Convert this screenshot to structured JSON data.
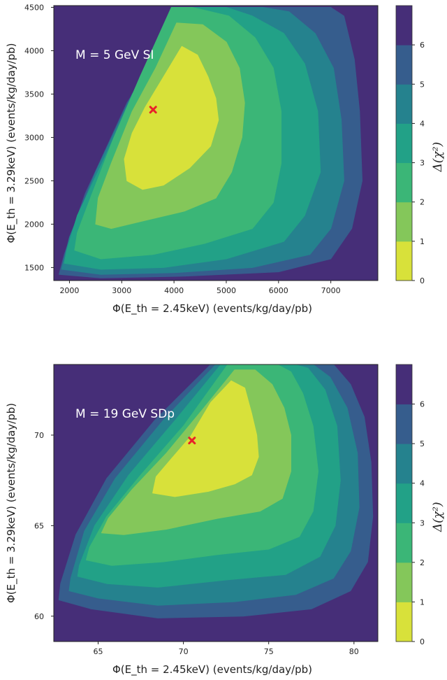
{
  "colors": {
    "levels": [
      "#d8e13a",
      "#84c75a",
      "#3bb677",
      "#22a187",
      "#25828e",
      "#365d8d",
      "#462e78"
    ],
    "marker": "#e8222a"
  },
  "colorbar": {
    "label": "Δ(χ²)",
    "ticks": [
      "0",
      "1",
      "2",
      "3",
      "4",
      "5",
      "6"
    ],
    "range": [
      0,
      7
    ]
  },
  "chart_data": [
    {
      "type": "contour",
      "annotation": "M = 5 GeV SI",
      "xlabel": "Φ(E_th = 2.45keV) (events/kg/day/pb)",
      "ylabel": "Φ(E_th = 3.29keV) (events/kg/day/pb)",
      "xlim": [
        1700,
        7900
      ],
      "ylim": [
        1350,
        4520
      ],
      "xticks": [
        2000,
        3000,
        4000,
        5000,
        6000,
        7000
      ],
      "yticks": [
        1500,
        2000,
        2500,
        3000,
        3500,
        4000,
        4500
      ],
      "best_fit": [
        3600,
        3320
      ],
      "contour_levels": [
        1,
        2,
        3,
        4,
        5,
        6
      ],
      "contours": [
        {
          "level": "Δχ² < 1",
          "points": [
            [
              3100,
              2500
            ],
            [
              3400,
              2400
            ],
            [
              3800,
              2450
            ],
            [
              4300,
              2650
            ],
            [
              4700,
              2900
            ],
            [
              4850,
              3200
            ],
            [
              4800,
              3450
            ],
            [
              4650,
              3700
            ],
            [
              4450,
              3950
            ],
            [
              4150,
              4050
            ],
            [
              3800,
              3700
            ],
            [
              3450,
              3350
            ],
            [
              3200,
              3050
            ],
            [
              3050,
              2750
            ]
          ]
        },
        {
          "level": "Δχ² < 2",
          "points": [
            [
              2500,
              2000
            ],
            [
              2800,
              1950
            ],
            [
              3500,
              2050
            ],
            [
              4200,
              2150
            ],
            [
              4800,
              2300
            ],
            [
              5100,
              2600
            ],
            [
              5300,
              3000
            ],
            [
              5350,
              3400
            ],
            [
              5250,
              3800
            ],
            [
              5000,
              4100
            ],
            [
              4550,
              4300
            ],
            [
              4050,
              4320
            ],
            [
              3650,
              3800
            ],
            [
              3200,
              3300
            ],
            [
              2800,
              2700
            ],
            [
              2550,
              2300
            ]
          ]
        },
        {
          "level": "Δχ² < 3",
          "points": [
            [
              2100,
              1700
            ],
            [
              2600,
              1600
            ],
            [
              3600,
              1650
            ],
            [
              4600,
              1780
            ],
            [
              5500,
              1950
            ],
            [
              5900,
              2250
            ],
            [
              6050,
              2700
            ],
            [
              6050,
              3300
            ],
            [
              5900,
              3800
            ],
            [
              5550,
              4150
            ],
            [
              5050,
              4400
            ],
            [
              4350,
              4500
            ],
            [
              3950,
              4500
            ],
            [
              3350,
              3700
            ],
            [
              2850,
              3000
            ],
            [
              2400,
              2300
            ],
            [
              2150,
              1900
            ]
          ]
        },
        {
          "level": "Δχ² < 4",
          "points": [
            [
              1900,
              1550
            ],
            [
              2600,
              1480
            ],
            [
              3800,
              1500
            ],
            [
              5000,
              1600
            ],
            [
              6100,
              1800
            ],
            [
              6500,
              2100
            ],
            [
              6800,
              2600
            ],
            [
              6750,
              3300
            ],
            [
              6500,
              3850
            ],
            [
              6100,
              4200
            ],
            [
              5500,
              4400
            ],
            [
              5000,
              4500
            ],
            [
              4150,
              4500
            ],
            [
              3300,
              3600
            ],
            [
              2700,
              2800
            ],
            [
              2150,
              2100
            ],
            [
              1950,
              1700
            ]
          ]
        },
        {
          "level": "Δχ² < 5",
          "points": [
            [
              1850,
              1480
            ],
            [
              2600,
              1420
            ],
            [
              4000,
              1440
            ],
            [
              5500,
              1500
            ],
            [
              6600,
              1650
            ],
            [
              7000,
              1950
            ],
            [
              7250,
              2500
            ],
            [
              7200,
              3200
            ],
            [
              7050,
              3800
            ],
            [
              6700,
              4200
            ],
            [
              6200,
              4450
            ],
            [
              5700,
              4500
            ],
            [
              4250,
              4500
            ],
            [
              3200,
              3500
            ],
            [
              2500,
              2600
            ],
            [
              2000,
              1850
            ]
          ]
        },
        {
          "level": "Δχ² < 6",
          "points": [
            [
              1800,
              1420
            ],
            [
              2600,
              1380
            ],
            [
              4200,
              1400
            ],
            [
              6000,
              1450
            ],
            [
              7000,
              1600
            ],
            [
              7400,
              1950
            ],
            [
              7600,
              2500
            ],
            [
              7550,
              3300
            ],
            [
              7450,
              3900
            ],
            [
              7250,
              4400
            ],
            [
              7000,
              4500
            ],
            [
              4300,
              4500
            ],
            [
              3100,
              3400
            ],
            [
              2300,
              2350
            ],
            [
              1900,
              1650
            ]
          ]
        }
      ]
    },
    {
      "type": "contour",
      "annotation": "M = 19 GeV SDp",
      "xlabel": "Φ(E_th = 2.45keV) (events/kg/day/pb)",
      "ylabel": "Φ(E_th = 3.29keV) (events/kg/day/pb)",
      "xlim": [
        62.4,
        81.4
      ],
      "ylim": [
        58.6,
        73.9
      ],
      "xticks": [
        65,
        70,
        75,
        80
      ],
      "yticks": [
        60,
        65,
        70
      ],
      "best_fit": [
        70.5,
        69.7
      ],
      "contour_levels": [
        1,
        2,
        3,
        4,
        5,
        6
      ],
      "contours": [
        {
          "level": "Δχ² < 1",
          "points": [
            [
              68.2,
              66.8
            ],
            [
              69.5,
              66.6
            ],
            [
              71.5,
              66.9
            ],
            [
              73.0,
              67.3
            ],
            [
              74.0,
              67.8
            ],
            [
              74.4,
              68.8
            ],
            [
              74.3,
              70.0
            ],
            [
              74.0,
              71.2
            ],
            [
              73.6,
              72.6
            ],
            [
              72.8,
              73.0
            ],
            [
              71.6,
              71.8
            ],
            [
              70.4,
              69.9
            ],
            [
              69.3,
              68.7
            ],
            [
              68.4,
              67.7
            ]
          ]
        },
        {
          "level": "Δχ² < 2",
          "points": [
            [
              65.2,
              64.6
            ],
            [
              66.5,
              64.5
            ],
            [
              69.0,
              64.8
            ],
            [
              72.0,
              65.4
            ],
            [
              74.5,
              65.8
            ],
            [
              75.8,
              66.5
            ],
            [
              76.3,
              68.0
            ],
            [
              76.3,
              70.0
            ],
            [
              75.9,
              71.5
            ],
            [
              75.2,
              72.8
            ],
            [
              74.2,
              73.6
            ],
            [
              73.0,
              73.6
            ],
            [
              71.2,
              71.5
            ],
            [
              69.0,
              69.0
            ],
            [
              67.0,
              67.0
            ],
            [
              65.6,
              65.4
            ]
          ]
        },
        {
          "level": "Δχ² < 3",
          "points": [
            [
              64.3,
              63.1
            ],
            [
              65.8,
              62.8
            ],
            [
              68.8,
              63.0
            ],
            [
              72.0,
              63.4
            ],
            [
              75.0,
              63.7
            ],
            [
              76.8,
              64.4
            ],
            [
              77.6,
              65.8
            ],
            [
              77.9,
              68.0
            ],
            [
              77.6,
              70.5
            ],
            [
              77.0,
              72.3
            ],
            [
              76.3,
              73.5
            ],
            [
              75.5,
              73.9
            ],
            [
              72.6,
              73.9
            ],
            [
              70.0,
              70.5
            ],
            [
              67.5,
              67.8
            ],
            [
              65.5,
              65.5
            ],
            [
              64.5,
              63.8
            ]
          ]
        },
        {
          "level": "Δχ² < 4",
          "points": [
            [
              63.8,
              62.2
            ],
            [
              65.5,
              61.8
            ],
            [
              68.5,
              61.6
            ],
            [
              72.5,
              62.0
            ],
            [
              76.0,
              62.3
            ],
            [
              78.0,
              63.3
            ],
            [
              78.9,
              65.0
            ],
            [
              79.2,
              67.5
            ],
            [
              79.0,
              70.5
            ],
            [
              78.3,
              72.5
            ],
            [
              77.3,
              73.7
            ],
            [
              76.5,
              73.9
            ],
            [
              72.2,
              73.9
            ],
            [
              69.5,
              70.8
            ],
            [
              66.8,
              67.8
            ],
            [
              64.8,
              65.0
            ],
            [
              63.9,
              62.8
            ]
          ]
        },
        {
          "level": "Δχ² < 5",
          "points": [
            [
              63.3,
              61.4
            ],
            [
              65.0,
              61.0
            ],
            [
              68.5,
              60.6
            ],
            [
              73.0,
              60.8
            ],
            [
              76.6,
              61.2
            ],
            [
              78.8,
              62.1
            ],
            [
              79.8,
              63.6
            ],
            [
              80.3,
              66.0
            ],
            [
              80.2,
              69.0
            ],
            [
              79.6,
              71.5
            ],
            [
              78.6,
              73.2
            ],
            [
              77.6,
              73.9
            ],
            [
              71.9,
              73.9
            ],
            [
              68.8,
              70.8
            ],
            [
              66.0,
              67.6
            ],
            [
              64.2,
              64.7
            ],
            [
              63.4,
              62.1
            ]
          ]
        },
        {
          "level": "Δχ² < 6",
          "points": [
            [
              62.7,
              60.9
            ],
            [
              64.6,
              60.4
            ],
            [
              68.5,
              59.9
            ],
            [
              73.5,
              60.0
            ],
            [
              77.5,
              60.4
            ],
            [
              79.8,
              61.4
            ],
            [
              80.8,
              63.0
            ],
            [
              81.1,
              65.5
            ],
            [
              81.0,
              68.5
            ],
            [
              80.6,
              71.0
            ],
            [
              79.8,
              72.8
            ],
            [
              78.8,
              73.9
            ],
            [
              71.6,
              73.9
            ],
            [
              68.3,
              70.8
            ],
            [
              65.5,
              67.6
            ],
            [
              63.7,
              64.5
            ],
            [
              62.8,
              61.8
            ]
          ]
        }
      ]
    }
  ]
}
